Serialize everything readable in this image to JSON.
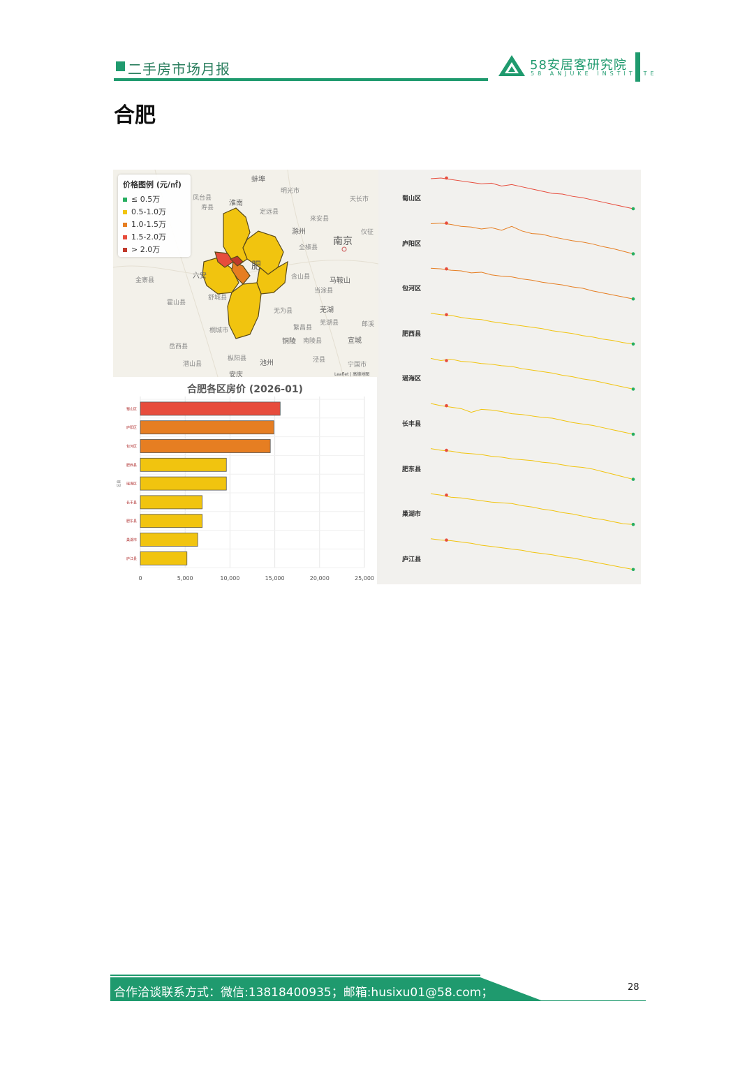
{
  "header": {
    "section_title": "二手房市场月报",
    "brand_cn": "58安居客研究院",
    "brand_en": "58 ANJUKE INSTITUTE"
  },
  "city_title": "合肥",
  "colors": {
    "brand_green": "#1f9a6e",
    "tier_le_0_5": "#27ae60",
    "tier_0_5_1_0": "#f1c40f",
    "tier_1_0_1_5": "#e67e22",
    "tier_1_5_2_0": "#e74c3c",
    "tier_gt_2_0": "#c0392b"
  },
  "map": {
    "legend_title": "价格图例 (元/㎡)",
    "legend_items": [
      "≤ 0.5万",
      "0.5-1.0万",
      "1.0-1.5万",
      "1.5-2.0万",
      "> 2.0万"
    ],
    "place_labels": [
      "蚌埠",
      "淮南",
      "明光市",
      "天长市",
      "凤台县",
      "寿县",
      "定远县",
      "来安县",
      "滁州",
      "全椒县",
      "南京",
      "仪征",
      "六安",
      "金寨县",
      "霍山县",
      "舒城县",
      "含山县",
      "马鞍山",
      "当涂县",
      "无为县",
      "芜湖",
      "桐城市",
      "繁昌县",
      "芜湖县",
      "郎溪",
      "铜陵",
      "南陵县",
      "宣城",
      "岳西县",
      "枞阳县",
      "池州",
      "泾县",
      "宁国市",
      "潜山县",
      "安庆",
      "肥"
    ],
    "attribution": "Leaflet | 高德地图"
  },
  "chart_data": [
    {
      "type": "bar",
      "title": "合肥各区房价 (2026-01)",
      "orientation": "horizontal",
      "categories": [
        "蜀山区",
        "庐阳区",
        "包河区",
        "肥西县",
        "瑶海区",
        "长丰县",
        "肥东县",
        "巢湖市",
        "庐江县"
      ],
      "values": [
        15600,
        14900,
        14500,
        9600,
        9600,
        6900,
        6900,
        6400,
        5200
      ],
      "bar_colors": [
        "#e74c3c",
        "#e67e22",
        "#e67e22",
        "#f1c40f",
        "#f1c40f",
        "#f1c40f",
        "#f1c40f",
        "#f1c40f",
        "#f1c40f"
      ],
      "xlim": [
        0,
        25000
      ],
      "x_ticks": [
        "0",
        "5,000",
        "10,000",
        "15,000",
        "20,000",
        "25,000"
      ],
      "ylabel": "区县",
      "grid": true
    },
    {
      "type": "line",
      "subtype": "sparklines",
      "series": [
        {
          "name": "蜀山区",
          "color": "#e74c3c",
          "values": [
            100,
            101,
            99,
            97,
            95,
            93,
            94,
            90,
            92,
            89,
            86,
            83,
            80,
            79,
            76,
            74,
            71,
            68,
            65,
            62,
            59
          ]
        },
        {
          "name": "庐阳区",
          "color": "#e67e22",
          "values": [
            100,
            101,
            99,
            96,
            95,
            92,
            94,
            90,
            96,
            89,
            85,
            84,
            80,
            77,
            74,
            72,
            69,
            65,
            62,
            58,
            54
          ]
        },
        {
          "name": "包河区",
          "color": "#e67e22",
          "values": [
            100,
            99,
            97,
            96,
            93,
            94,
            90,
            88,
            87,
            84,
            82,
            79,
            77,
            75,
            72,
            70,
            66,
            63,
            60,
            57,
            54
          ]
        },
        {
          "name": "肥西县",
          "color": "#f1c40f",
          "values": [
            100,
            98,
            97,
            94,
            92,
            91,
            88,
            86,
            84,
            82,
            80,
            78,
            75,
            73,
            71,
            68,
            66,
            63,
            61,
            58,
            56
          ]
        },
        {
          "name": "瑶海区",
          "color": "#f1c40f",
          "values": [
            100,
            97,
            99,
            96,
            95,
            93,
            92,
            90,
            89,
            86,
            84,
            82,
            80,
            77,
            75,
            72,
            70,
            67,
            64,
            61,
            58
          ]
        },
        {
          "name": "长丰县",
          "color": "#f1c40f",
          "values": [
            100,
            97,
            95,
            93,
            88,
            92,
            91,
            89,
            86,
            85,
            83,
            81,
            80,
            77,
            74,
            72,
            70,
            67,
            64,
            61,
            58
          ]
        },
        {
          "name": "肥东县",
          "color": "#f1c40f",
          "values": [
            100,
            98,
            97,
            95,
            94,
            93,
            91,
            90,
            88,
            87,
            86,
            84,
            83,
            81,
            79,
            78,
            76,
            73,
            70,
            67,
            64
          ]
        },
        {
          "name": "巢湖市",
          "color": "#f1c40f",
          "values": [
            100,
            98,
            95,
            94,
            92,
            90,
            88,
            87,
            86,
            83,
            81,
            78,
            76,
            73,
            71,
            68,
            65,
            63,
            60,
            57,
            56
          ]
        },
        {
          "name": "庐江县",
          "color": "#f1c40f",
          "values": [
            100,
            98,
            97,
            95,
            93,
            90,
            88,
            86,
            84,
            82,
            79,
            77,
            75,
            72,
            70,
            67,
            64,
            61,
            58,
            55,
            52
          ]
        }
      ]
    }
  ],
  "footer": {
    "contact": "合作洽谈联系方式：微信:13818400935；邮箱:husixu01@58.com；",
    "page_number": "28"
  }
}
